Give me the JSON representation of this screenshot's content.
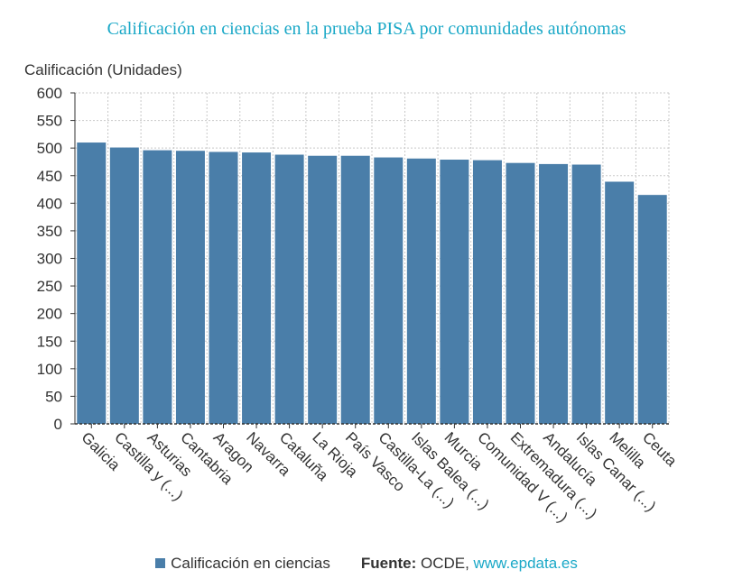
{
  "colors": {
    "bar": "#4a7ea9",
    "title": "#1aa8c7",
    "text": "#333333",
    "grid": "#c8c8c8",
    "link": "#1aa8c7"
  },
  "source": {
    "label": "Fuente:",
    "name": "OCDE,",
    "link_text": "www.epdata.es"
  },
  "chart_data": {
    "type": "bar",
    "title": "Calificación en ciencias en la prueba PISA por comunidades autónomas",
    "ylabel": "Calificación (Unidades)",
    "xlabel": "",
    "ylim": [
      0,
      600
    ],
    "yticks": [
      0,
      50,
      100,
      150,
      200,
      250,
      300,
      350,
      400,
      450,
      500,
      550,
      600
    ],
    "grid": true,
    "legend_position": "bottom",
    "categories": [
      "Galicia",
      "Castilla y (...)",
      "Asturias",
      "Cantabria",
      "Aragon",
      "Navarra",
      "Cataluña",
      "La Rioja",
      "País Vasco",
      "Castilla-La (...)",
      "Islas Balea (...)",
      "Murcia",
      "Comunidad V (...)",
      "Extremadura (...)",
      "Andalucía",
      "Islas Canar (...)",
      "Melilla",
      "Ceuta"
    ],
    "series": [
      {
        "name": "Calificación en ciencias",
        "values": [
          510,
          501,
          496,
          495,
          493,
          492,
          488,
          486,
          486,
          483,
          481,
          479,
          478,
          473,
          471,
          470,
          439,
          415
        ]
      }
    ]
  }
}
